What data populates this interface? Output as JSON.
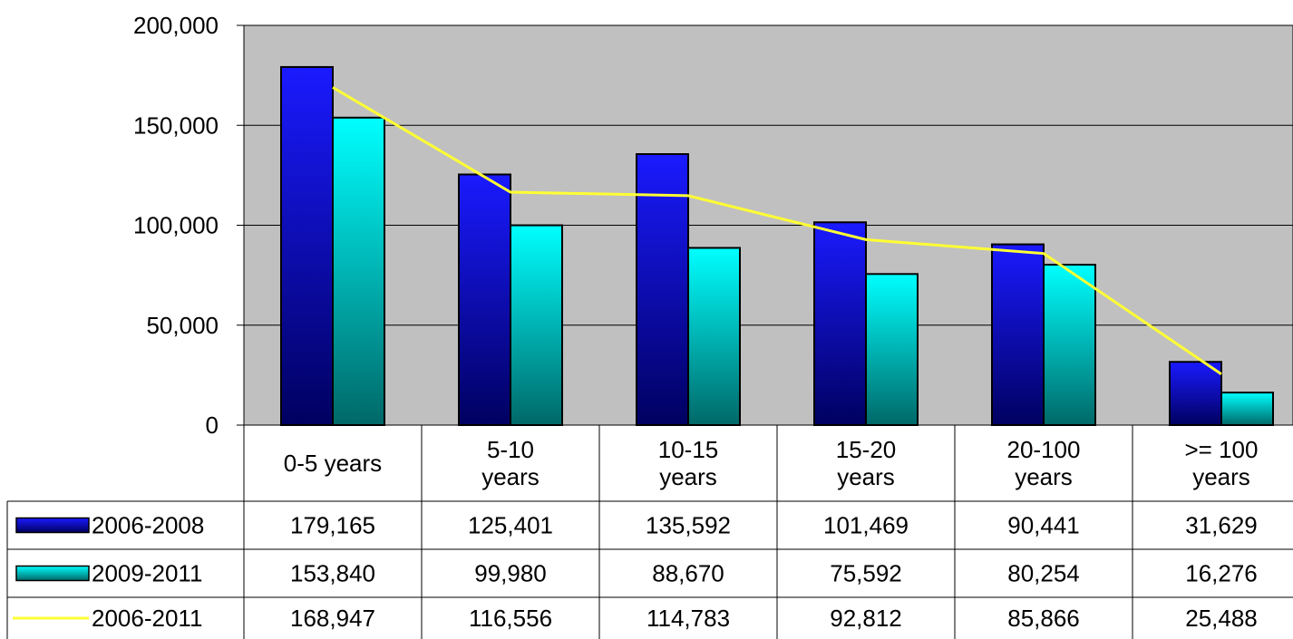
{
  "chart_data": {
    "type": "bar",
    "categories": [
      "0-5 years",
      "5-10 years",
      "10-15 years",
      "15-20 years",
      "20-100 years",
      ">= 100 years"
    ],
    "category_lines": [
      [
        "0-5 years"
      ],
      [
        "5-10",
        "years"
      ],
      [
        "10-15",
        "years"
      ],
      [
        "15-20",
        "years"
      ],
      [
        "20-100",
        "years"
      ],
      [
        ">= 100",
        "years"
      ]
    ],
    "series": [
      {
        "name": "2006-2008",
        "kind": "bar",
        "color": "#1010c0",
        "values": [
          179165,
          125401,
          135592,
          101469,
          90441,
          31629
        ],
        "labels": [
          "179,165",
          "125,401",
          "135,592",
          "101,469",
          "90,441",
          "31,629"
        ]
      },
      {
        "name": "2009-2011",
        "kind": "bar",
        "color": "#00e8e8",
        "values": [
          153840,
          99980,
          88670,
          75592,
          80254,
          16276
        ],
        "labels": [
          "153,840",
          "99,980",
          "88,670",
          "75,592",
          "80,254",
          "16,276"
        ]
      },
      {
        "name": "2006-2011",
        "kind": "line",
        "color": "#ffff33",
        "values": [
          168947,
          116556,
          114783,
          92812,
          85866,
          25488
        ],
        "labels": [
          "168,947",
          "116,556",
          "114,783",
          "92,812",
          "85,866",
          "25,488"
        ]
      }
    ],
    "ylim": [
      0,
      200000
    ],
    "yticks": [
      0,
      50000,
      100000,
      150000,
      200000
    ],
    "ytick_labels": [
      "0",
      "50,000",
      "100,000",
      "150,000",
      "200,000"
    ],
    "plot_background": "#c0c0c0",
    "grid": true,
    "legend": "data-table"
  }
}
